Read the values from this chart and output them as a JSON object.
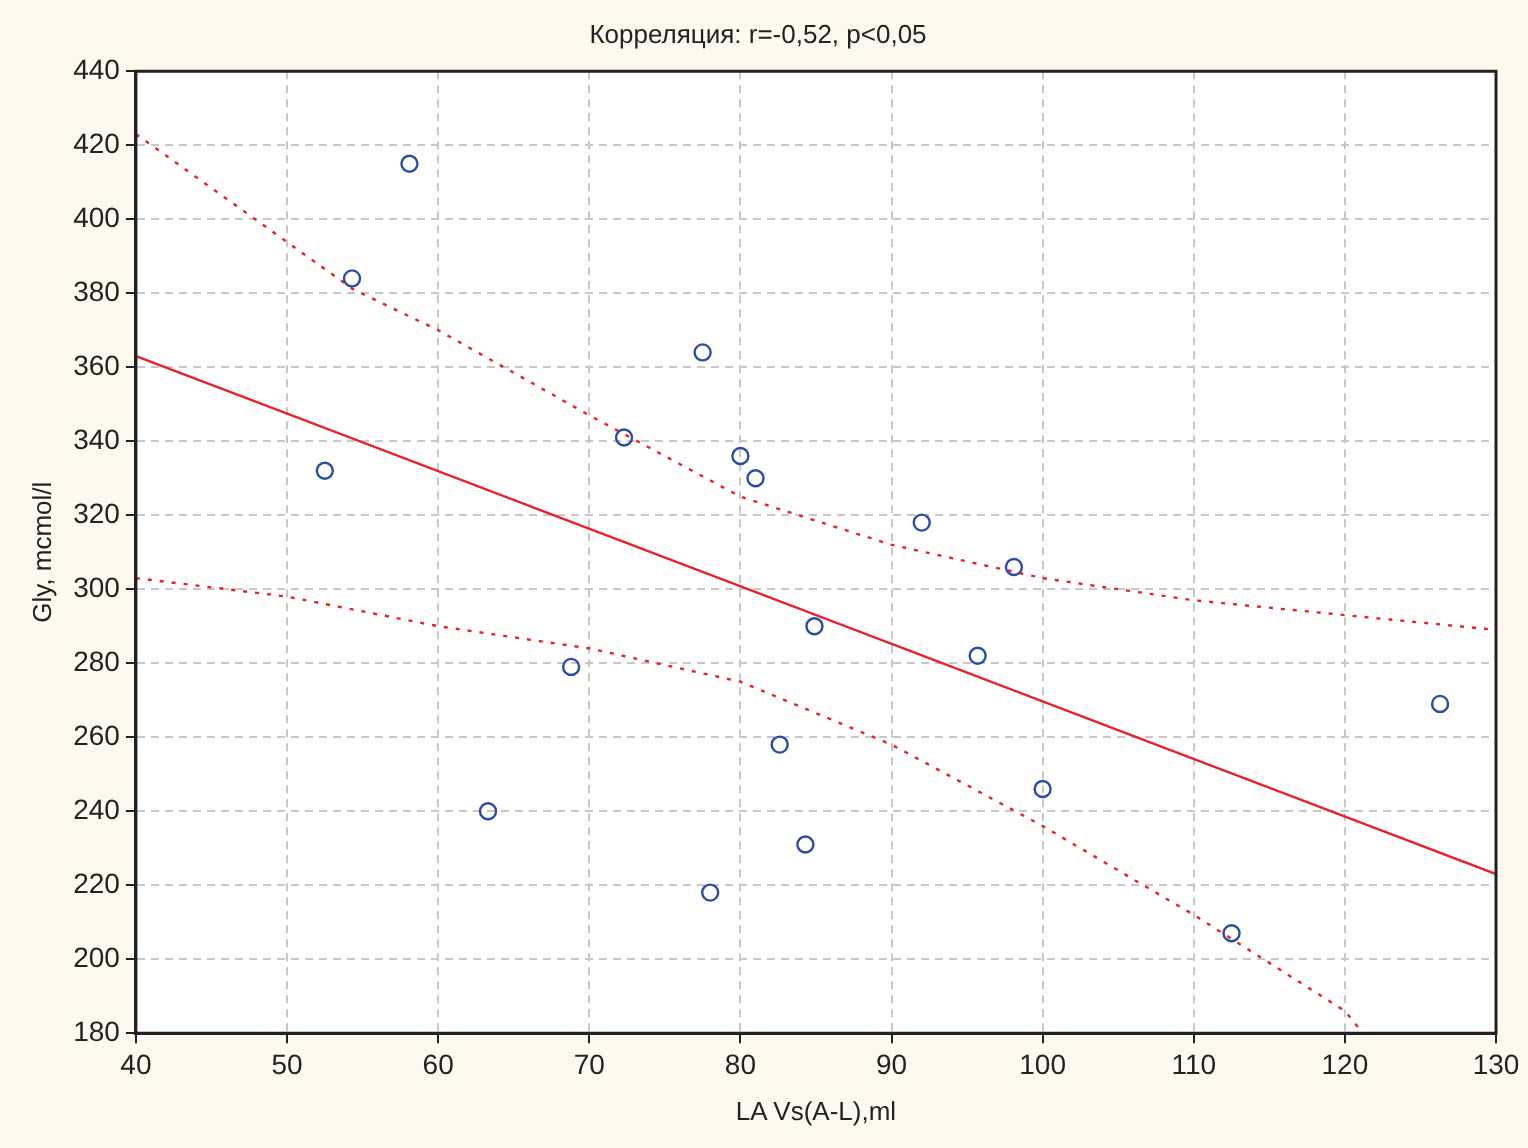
{
  "chart_data": {
    "type": "scatter",
    "title": "Корреляция: r=-0,52, p<0,05",
    "xlabel": "LA Vs(A-L),ml",
    "ylabel": "Gly, mcmol/l",
    "xlim": [
      40,
      130
    ],
    "xticks": [
      40,
      50,
      60,
      70,
      80,
      90,
      100,
      110,
      120,
      130
    ],
    "ylim": [
      180,
      440
    ],
    "yticks": [
      180,
      200,
      220,
      240,
      260,
      280,
      300,
      320,
      340,
      360,
      380,
      400,
      420,
      440
    ],
    "grid": true,
    "legend": false,
    "series": [
      {
        "marker": "circle",
        "color": "#2b4ba6",
        "x": [
          52.5,
          54.3,
          58.1,
          63.3,
          68.8,
          72.3,
          77.5,
          78.0,
          80.0,
          81.0,
          82.6,
          84.3,
          84.9,
          92.0,
          95.7,
          98.1,
          100.0,
          112.5,
          126.3
        ],
        "values": [
          332,
          384,
          415,
          240,
          279,
          341,
          364,
          218,
          336,
          330,
          258,
          231,
          290,
          318,
          282,
          306,
          246,
          207,
          269
        ]
      },
      {
        "type": "line",
        "marker": "none",
        "line_style": "solid",
        "color": "#e8202a",
        "x": [
          40,
          130
        ],
        "values": [
          363,
          223
        ]
      },
      {
        "type": "line",
        "marker": "none",
        "line_style": "dotted",
        "color": "#e8202a",
        "x": [
          40,
          54.4,
          60,
          70,
          80,
          90,
          100,
          110,
          120,
          130
        ],
        "values": [
          423,
          381,
          370,
          347,
          325,
          312,
          303,
          297,
          293,
          289
        ]
      },
      {
        "type": "line",
        "marker": "none",
        "line_style": "dotted",
        "color": "#e8202a",
        "x": [
          40,
          50,
          60,
          70,
          80,
          90,
          100,
          110,
          120,
          121.2
        ],
        "values": [
          303,
          298,
          290,
          284,
          275,
          258,
          236,
          212,
          186,
          180
        ]
      }
    ]
  }
}
